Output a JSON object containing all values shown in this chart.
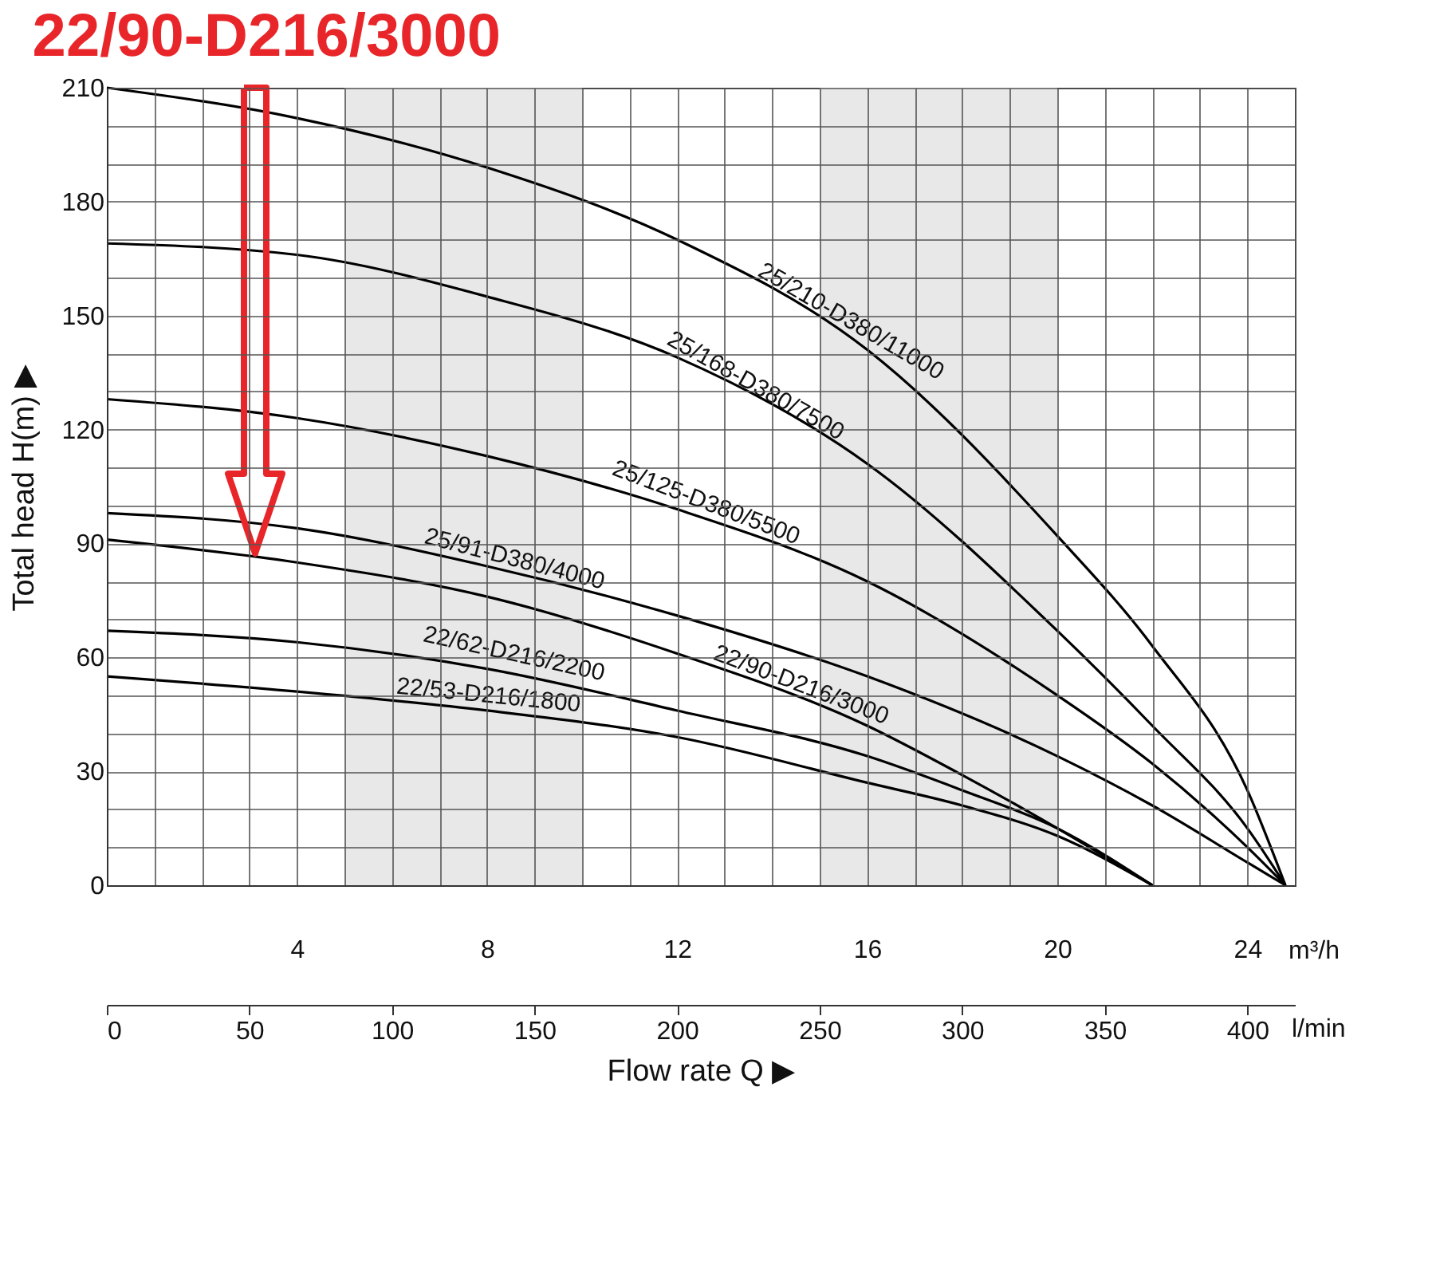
{
  "chart_data": {
    "type": "line",
    "title": "22/90-D216/3000",
    "xlabel": "m³/h",
    "x2label": "Flow rate Q ▶",
    "ylabel": "Total head H(m) ▶",
    "xlim": [
      0,
      25
    ],
    "ylim": [
      0,
      210
    ],
    "x2lim": [
      0,
      416.67
    ],
    "xticks": [
      {
        "value": 0,
        "label": null
      },
      {
        "value": 1,
        "label": null
      },
      {
        "value": 2,
        "label": null
      },
      {
        "value": 3,
        "label": null
      },
      4,
      {
        "value": 5,
        "label": null
      },
      {
        "value": 6,
        "label": null
      },
      {
        "value": 7,
        "label": null
      },
      8,
      {
        "value": 9,
        "label": null
      },
      {
        "value": 10,
        "label": null
      },
      {
        "value": 11,
        "label": null
      },
      12,
      {
        "value": 13,
        "label": null
      },
      {
        "value": 14,
        "label": null
      },
      {
        "value": 15,
        "label": null
      },
      16,
      {
        "value": 17,
        "label": null
      },
      {
        "value": 18,
        "label": null
      },
      {
        "value": 19,
        "label": null
      },
      20,
      {
        "value": 21,
        "label": null
      },
      {
        "value": 22,
        "label": null
      },
      {
        "value": 23,
        "label": null
      },
      24,
      {
        "value": 25,
        "label": null
      }
    ],
    "yticks": [
      0,
      {
        "value": 10,
        "label": null
      },
      {
        "value": 20,
        "label": null
      },
      30,
      {
        "value": 40,
        "label": null
      },
      {
        "value": 50,
        "label": null
      },
      60,
      {
        "value": 70,
        "label": null
      },
      {
        "value": 80,
        "label": null
      },
      90,
      {
        "value": 100,
        "label": null
      },
      {
        "value": 110,
        "label": null
      },
      120,
      {
        "value": 130,
        "label": null
      },
      {
        "value": 140,
        "label": null
      },
      150,
      {
        "value": 160,
        "label": null
      },
      {
        "value": 170,
        "label": null
      },
      180,
      {
        "value": 190,
        "label": null
      },
      {
        "value": 200,
        "label": null
      },
      210
    ],
    "x2ticks": [
      0,
      50,
      100,
      150,
      200,
      250,
      300,
      350,
      400
    ],
    "grid": true,
    "legend": false,
    "marker": "none",
    "line_style": "solid",
    "bands": [
      {
        "axis": "x",
        "from": 5,
        "to": 10,
        "color": "#e8e8e8"
      },
      {
        "axis": "x",
        "from": 15,
        "to": 20,
        "color": "#e8e8e8"
      }
    ],
    "series": [
      {
        "color": "#000000",
        "x": [
          0,
          4,
          8,
          12,
          16,
          20,
          22,
          24,
          24.8
        ],
        "values": [
          210,
          202,
          189,
          170,
          141,
          92,
          63,
          25,
          0
        ]
      },
      {
        "color": "#000000",
        "x": [
          0,
          4,
          8,
          12,
          16,
          20,
          22,
          24,
          24.8
        ],
        "values": [
          169,
          166,
          155,
          139,
          111,
          67,
          42,
          15,
          0
        ]
      },
      {
        "color": "#000000",
        "x": [
          0,
          4,
          8,
          12,
          16,
          20,
          22,
          24,
          24.8
        ],
        "values": [
          128,
          123,
          113,
          99,
          80,
          50,
          32,
          10,
          0
        ]
      },
      {
        "color": "#000000",
        "x": [
          0,
          4,
          8,
          12,
          16,
          20,
          22,
          24,
          24.8
        ],
        "values": [
          98,
          94,
          84,
          71,
          55,
          34,
          21,
          6,
          0
        ]
      },
      {
        "color": "#000000",
        "x": [
          0,
          4,
          8,
          12,
          16,
          18,
          20,
          22
        ],
        "values": [
          91,
          85,
          76,
          61,
          42,
          29,
          15,
          0
        ]
      },
      {
        "color": "#000000",
        "x": [
          0,
          4,
          8,
          12,
          16,
          18,
          20,
          22
        ],
        "values": [
          67,
          64,
          57,
          46,
          34,
          25,
          15,
          0
        ]
      },
      {
        "color": "#000000",
        "x": [
          0,
          4,
          8,
          12,
          16,
          18,
          20,
          22
        ],
        "values": [
          55,
          51,
          46,
          39,
          27,
          21,
          13,
          0
        ]
      }
    ],
    "annotations": [
      {
        "text": "25/210-D380/11000",
        "x": 15.5,
        "y": 145
      },
      {
        "text": "25/168-D380/7500",
        "x": 13.5,
        "y": 128
      },
      {
        "text": "25/125-D380/5500",
        "x": 12.5,
        "y": 97
      },
      {
        "text": "25/91-D380/4000",
        "x": 8.5,
        "y": 82
      },
      {
        "text": "22/90-D216/3000",
        "x": 14.5,
        "y": 49
      },
      {
        "text": "22/62-D216/2200",
        "x": 8.5,
        "y": 57
      },
      {
        "text": "22/53-D216/1800",
        "x": 8,
        "y": 46
      },
      "l/min"
    ]
  }
}
